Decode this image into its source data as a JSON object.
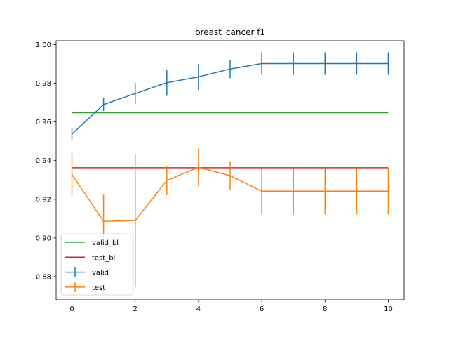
{
  "chart_data": {
    "type": "line",
    "title": "breast_cancer  f1",
    "xlabel": "",
    "ylabel": "",
    "xlim": [
      -0.5,
      10.5
    ],
    "ylim": [
      0.868,
      1.002
    ],
    "xticks": [
      0,
      2,
      4,
      6,
      8,
      10
    ],
    "xtick_labels": [
      "0",
      "2",
      "4",
      "6",
      "8",
      "10"
    ],
    "yticks": [
      0.88,
      0.9,
      0.92,
      0.94,
      0.96,
      0.98,
      1.0
    ],
    "ytick_labels": [
      "0.88",
      "0.90",
      "0.92",
      "0.94",
      "0.96",
      "0.98",
      "1.00"
    ],
    "grid": false,
    "legend_position": "lower-left",
    "baselines": [
      {
        "name": "valid_bl",
        "value": 0.9648,
        "x_range": [
          0,
          10
        ],
        "color": "#2ca02c"
      },
      {
        "name": "test_bl",
        "value": 0.9363,
        "x_range": [
          0,
          10
        ],
        "color": "#d62728"
      }
    ],
    "series": [
      {
        "name": "valid",
        "color": "#1f77b4",
        "x": [
          0,
          1,
          2,
          3,
          4,
          5,
          6,
          7,
          8,
          9,
          10
        ],
        "values": [
          0.9537,
          0.969,
          0.9747,
          0.9803,
          0.9833,
          0.9874,
          0.9902,
          0.9902,
          0.9902,
          0.9902,
          0.9902
        ],
        "errors": [
          0.0033,
          0.0033,
          0.0055,
          0.0068,
          0.0068,
          0.0048,
          0.0058,
          0.0058,
          0.0058,
          0.0058,
          0.0058
        ]
      },
      {
        "name": "test",
        "color": "#ff7f0e",
        "x": [
          0,
          1,
          2,
          3,
          4,
          5,
          6,
          7,
          8,
          9,
          10
        ],
        "values": [
          0.9328,
          0.9086,
          0.909,
          0.9297,
          0.9366,
          0.9322,
          0.9242,
          0.9242,
          0.9242,
          0.9242,
          0.9242
        ],
        "errors": [
          0.011,
          0.0138,
          0.0345,
          0.0075,
          0.0098,
          0.0072,
          0.012,
          0.012,
          0.012,
          0.012,
          0.012
        ]
      }
    ]
  }
}
